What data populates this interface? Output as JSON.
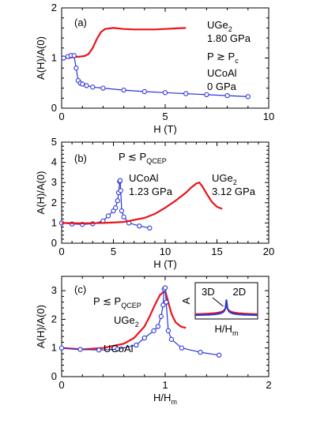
{
  "chart_data": [
    {
      "type": "line",
      "panel_label": "(a)",
      "xlabel": "H (T)",
      "ylabel": "A(H)/A(0)",
      "xlim": [
        0,
        10
      ],
      "ylim": [
        0,
        2
      ],
      "xticks": [
        "0",
        "5",
        "10"
      ],
      "yticks": [
        "0",
        "1",
        "2"
      ],
      "condition": {
        "main": "P ≳ P",
        "sub": "c"
      },
      "series": [
        {
          "name": "UGe2",
          "label_main": "UGe",
          "label_sub": "2",
          "pressure": "1.80 GPa",
          "color": "#e8141a",
          "marker": "none",
          "x": [
            0.3,
            0.6,
            0.9,
            1.1,
            1.3,
            1.5,
            1.7,
            1.9,
            2.1,
            2.5,
            3,
            3.5,
            4,
            4.5,
            5,
            5.5,
            6
          ],
          "y": [
            1.0,
            1.02,
            1.03,
            1.04,
            1.08,
            1.2,
            1.38,
            1.52,
            1.58,
            1.6,
            1.58,
            1.57,
            1.57,
            1.57,
            1.58,
            1.59,
            1.6
          ]
        },
        {
          "name": "UCoAl",
          "label_main": "UCoAl",
          "label_sub": "",
          "pressure": "0 GPa",
          "color": "#2a35d8",
          "marker": "circle",
          "x": [
            0.1,
            0.3,
            0.45,
            0.6,
            0.7,
            0.8,
            0.9,
            1.0,
            1.2,
            1.5,
            2,
            3,
            4,
            5,
            6,
            7,
            8,
            9
          ],
          "y": [
            1.0,
            1.03,
            1.05,
            1.05,
            0.8,
            0.55,
            0.5,
            0.48,
            0.45,
            0.42,
            0.4,
            0.36,
            0.33,
            0.31,
            0.29,
            0.27,
            0.25,
            0.23
          ]
        }
      ]
    },
    {
      "type": "line",
      "panel_label": "(b)",
      "xlabel": "H (T)",
      "ylabel": "A(H)/A(0)",
      "xlim": [
        0,
        20
      ],
      "ylim": [
        0,
        5
      ],
      "xticks": [
        "0",
        "5",
        "10",
        "15",
        "20"
      ],
      "yticks": [
        "0",
        "1",
        "2",
        "3",
        "4",
        "5"
      ],
      "condition": {
        "main": "P ≲ P",
        "sub": "QCEP"
      },
      "series": [
        {
          "name": "UCoAl",
          "label_main": "UCoAl",
          "label_sub": "",
          "pressure": "1.23 GPa",
          "color": "#2a35d8",
          "marker": "circle",
          "x": [
            0,
            1,
            2,
            3,
            4,
            4.5,
            5.0,
            5.2,
            5.4,
            5.5,
            5.6,
            5.65,
            5.7,
            5.8,
            6.0,
            6.5,
            7.5,
            8.5
          ],
          "y": [
            1.0,
            0.95,
            0.93,
            0.96,
            1.1,
            1.35,
            1.6,
            1.75,
            2.1,
            2.5,
            3.05,
            3.1,
            2.6,
            1.6,
            1.3,
            1.0,
            0.85,
            0.75
          ]
        },
        {
          "name": "UGe2",
          "label_main": "UGe",
          "label_sub": "2",
          "pressure": "3.12 GPa",
          "color": "#e8141a",
          "marker": "none",
          "x": [
            0,
            2,
            4,
            6,
            8,
            9,
            10,
            11,
            12,
            12.5,
            13,
            13.3,
            13.6,
            14,
            14.5,
            15,
            15.5
          ],
          "y": [
            1.0,
            0.98,
            1.0,
            1.05,
            1.25,
            1.45,
            1.75,
            2.1,
            2.5,
            2.75,
            2.95,
            3.0,
            2.8,
            2.45,
            2.05,
            1.8,
            1.7
          ]
        }
      ]
    },
    {
      "type": "line",
      "panel_label": "(c)",
      "xlabel": "H/H",
      "xlabel_sub": "m",
      "ylabel": "A(H)/A(0)",
      "xlim": [
        0,
        2
      ],
      "ylim": [
        0,
        3.5
      ],
      "xticks": [
        "0",
        "1",
        "2"
      ],
      "yticks": [
        "0",
        "1",
        "2",
        "3"
      ],
      "condition": {
        "main": "P ≲ P",
        "sub": "QCEP"
      },
      "series": [
        {
          "name": "UGe2",
          "label_main": "UGe",
          "label_sub": "2",
          "pressure": "",
          "color": "#e8141a",
          "marker": "none",
          "x": [
            0,
            0.2,
            0.4,
            0.6,
            0.7,
            0.8,
            0.85,
            0.9,
            0.95,
            1.0,
            1.03,
            1.06,
            1.1,
            1.15,
            1.2
          ],
          "y": [
            1.0,
            0.95,
            1.0,
            1.15,
            1.35,
            1.75,
            2.1,
            2.5,
            2.85,
            3.0,
            2.6,
            2.2,
            1.9,
            1.75,
            1.7
          ]
        },
        {
          "name": "UCoAl",
          "label_main": "UCoAl",
          "label_sub": "",
          "pressure": "",
          "color": "#2a35d8",
          "marker": "circle",
          "x": [
            0,
            0.18,
            0.36,
            0.54,
            0.72,
            0.8,
            0.89,
            0.93,
            0.96,
            0.98,
            0.99,
            1.0,
            1.01,
            1.03,
            1.06,
            1.16,
            1.34,
            1.52
          ],
          "y": [
            1.0,
            0.95,
            0.93,
            0.96,
            1.1,
            1.35,
            1.6,
            1.75,
            2.1,
            2.5,
            3.05,
            3.1,
            2.6,
            1.6,
            1.3,
            1.0,
            0.85,
            0.75
          ]
        }
      ],
      "inset": {
        "ylabel": "A",
        "xlabel": "H/H",
        "xlabel_sub": "m",
        "labels": [
          "3D",
          "2D"
        ],
        "curve_colors": {
          "3D": "#2a35d8",
          "2D": "#e8141a"
        }
      }
    }
  ]
}
